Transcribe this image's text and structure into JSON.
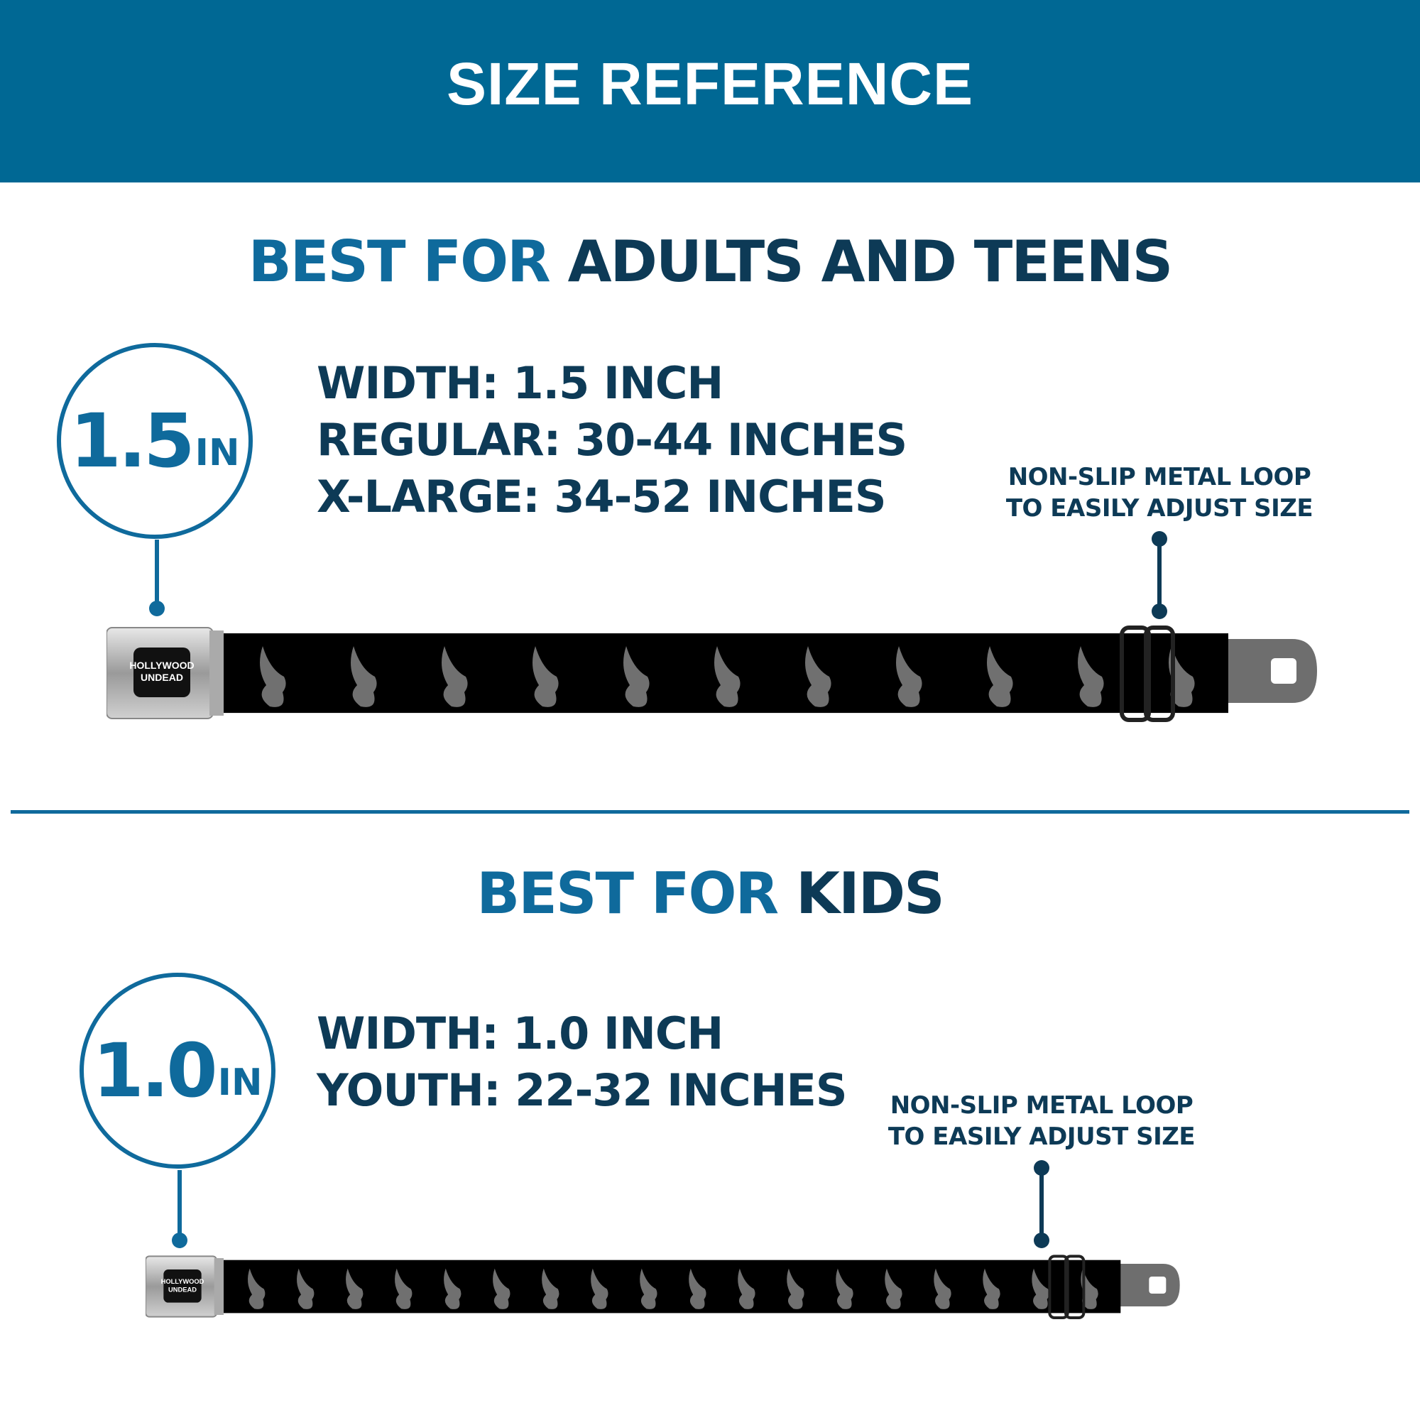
{
  "header": {
    "title": "SIZE REFERENCE"
  },
  "colors": {
    "header_bg": "#006894",
    "accent": "#0f6a9c",
    "dark": "#0d3a56",
    "belt": "#000000",
    "eagle": "#6b6b6b"
  },
  "adult": {
    "heading_highlight": "BEST FOR",
    "heading_rest": "ADULTS AND TEENS",
    "badge_value": "1.5",
    "badge_unit": "IN",
    "specs": [
      "WIDTH: 1.5 INCH",
      "REGULAR: 30-44 INCHES",
      "X-LARGE: 34-52 INCHES"
    ],
    "note": [
      "NON-SLIP METAL LOOP",
      "TO EASILY ADJUST SIZE"
    ],
    "buckle_logo": [
      "HOLLYWOOD",
      "UNDEAD"
    ]
  },
  "kids": {
    "heading_highlight": "BEST FOR",
    "heading_rest": "KIDS",
    "badge_value": "1.0",
    "badge_unit": "IN",
    "specs": [
      "WIDTH: 1.0 INCH",
      "YOUTH: 22-32 INCHES"
    ],
    "note": [
      "NON-SLIP METAL LOOP",
      "TO EASILY ADJUST SIZE"
    ],
    "buckle_logo": [
      "HOLLYWOOD",
      "UNDEAD"
    ]
  }
}
